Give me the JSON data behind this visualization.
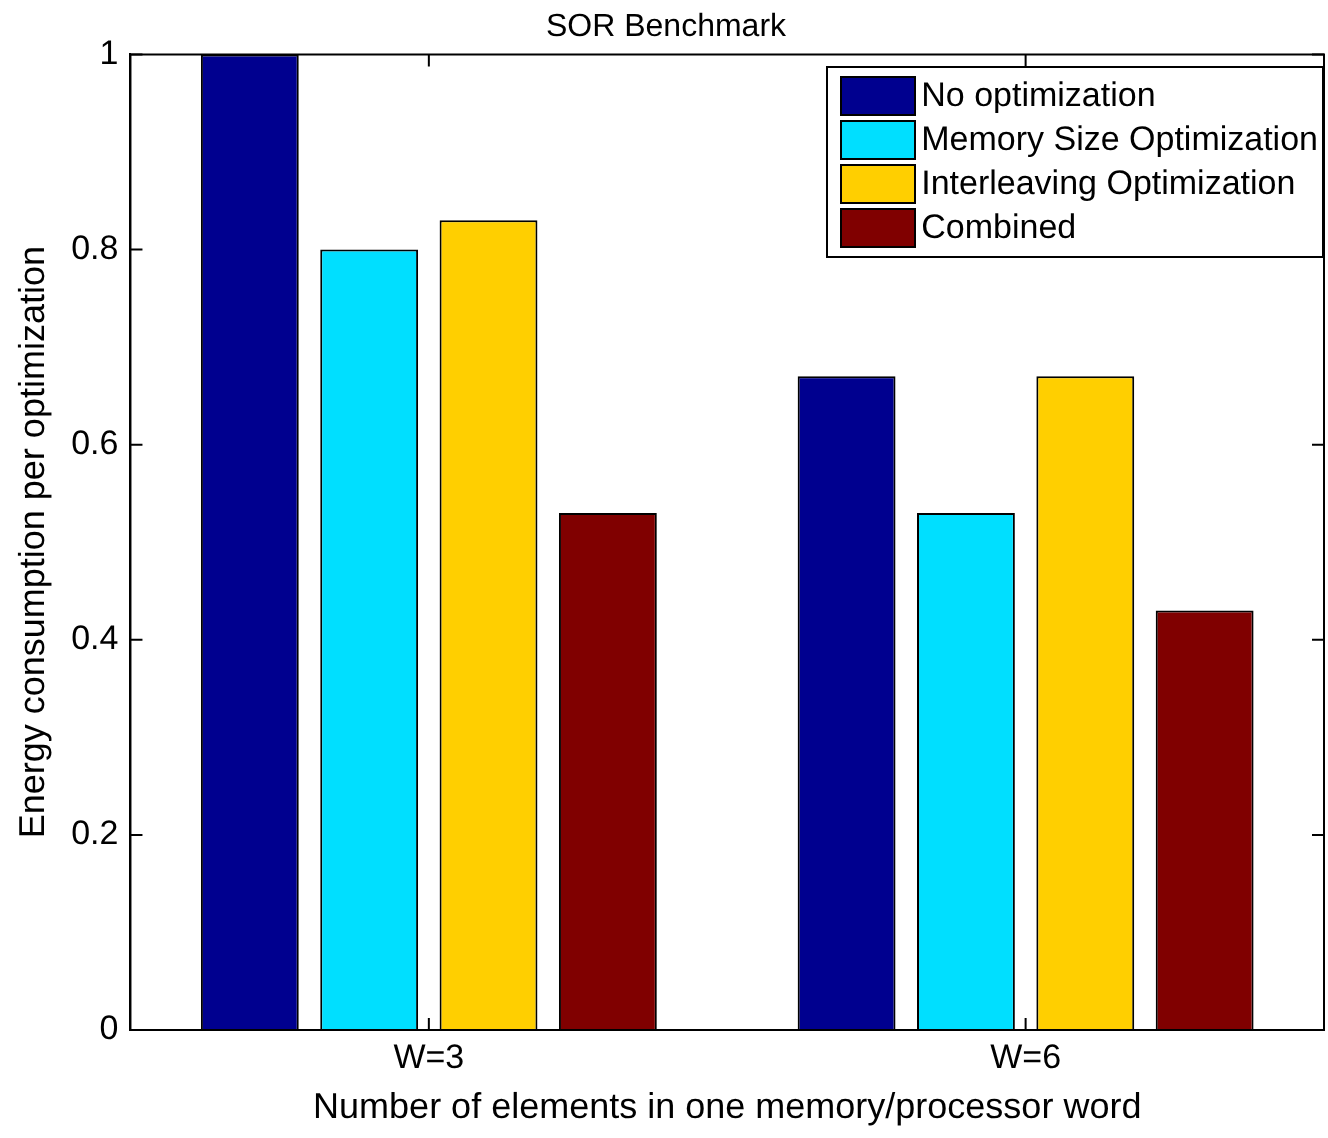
{
  "chart_data": {
    "type": "bar",
    "title": "SOR Benchmark",
    "xlabel": "Number of elements in one memory/processor word",
    "ylabel": "Energy consumption per optimization",
    "categories": [
      "W=3",
      "W=6"
    ],
    "series": [
      {
        "name": "No optimization",
        "color": "#00008f",
        "values": [
          1.0,
          0.67
        ]
      },
      {
        "name": "Memory Size Optimization",
        "color": "#00dfff",
        "values": [
          0.8,
          0.53
        ]
      },
      {
        "name": "Interleaving Optimization",
        "color": "#ffcf00",
        "values": [
          0.83,
          0.67
        ]
      },
      {
        "name": "Combined",
        "color": "#800000",
        "values": [
          0.53,
          0.43
        ]
      }
    ],
    "ylim": [
      0,
      1
    ],
    "yticks": [
      0,
      0.2,
      0.4,
      0.6,
      0.8,
      1
    ],
    "grid": false,
    "legend": "top right"
  }
}
